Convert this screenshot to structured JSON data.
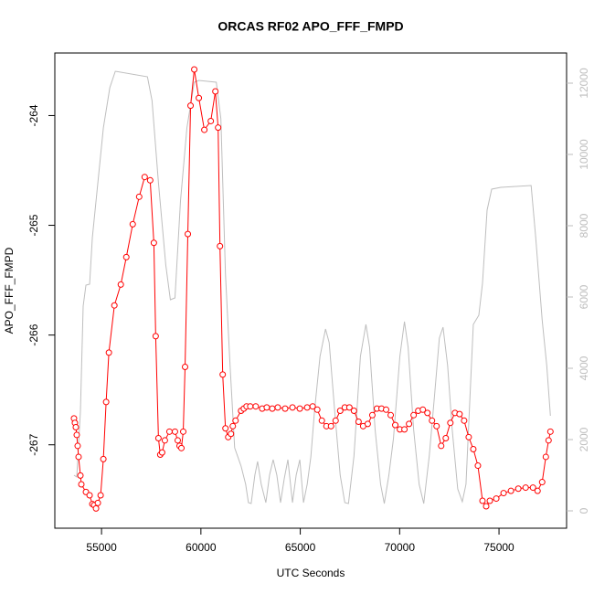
{
  "chart_data": {
    "type": "line",
    "title": "ORCAS RF02 APO_FFF_FMPD",
    "x_label": "UTC Seconds",
    "y_label": "APO_FFF_FMPD",
    "xlim": [
      52650,
      78400
    ],
    "xticks": [
      55000,
      60000,
      65000,
      70000,
      75000
    ],
    "ylim": [
      -267.76,
      -263.43
    ],
    "yticks": [
      -264,
      -265,
      -266,
      -267
    ],
    "y2lim": [
      -487,
      12846
    ],
    "y2ticks": [
      0,
      2000,
      4000,
      6000,
      8000,
      10000,
      12000
    ],
    "series": [
      {
        "color": "#ff0000",
        "markers": true,
        "x": [
          53614,
          53660,
          53707,
          53753,
          53799,
          53845,
          53938,
          53984,
          54215,
          54400,
          54538,
          54630,
          54723,
          54815,
          54954,
          55092,
          55231,
          55370,
          55647,
          55970,
          56247,
          56570,
          56894,
          57171,
          57448,
          57633,
          57725,
          57864,
          57956,
          58049,
          58187,
          58418,
          58695,
          58834,
          58926,
          59019,
          59111,
          59203,
          59342,
          59480,
          59665,
          59896,
          60173,
          60497,
          60728,
          60866,
          60959,
          61097,
          61236,
          61374,
          61513,
          61605,
          61744,
          62021,
          62159,
          62298,
          62483,
          62760,
          63083,
          63314,
          63591,
          63868,
          64238,
          64608,
          64977,
          65347,
          65624,
          65855,
          66086,
          66317,
          66548,
          66779,
          67009,
          67240,
          67471,
          67702,
          67933,
          68164,
          68395,
          68626,
          68857,
          69088,
          69319,
          69550,
          69780,
          70011,
          70242,
          70473,
          70704,
          70935,
          71167,
          71398,
          71628,
          71859,
          72090,
          72321,
          72552,
          72783,
          73014,
          73245,
          73476,
          73707,
          73938,
          74169,
          74354,
          74538,
          74862,
          75231,
          75601,
          75970,
          76340,
          76709,
          76940,
          77171,
          77356,
          77494,
          77586
        ],
        "values": [
          -266.76,
          -266.8,
          -266.84,
          -266.91,
          -267.01,
          -267.11,
          -267.28,
          -267.36,
          -267.43,
          -267.46,
          -267.54,
          -267.55,
          -267.58,
          -267.53,
          -267.46,
          -267.13,
          -266.61,
          -266.16,
          -265.73,
          -265.54,
          -265.29,
          -264.99,
          -264.74,
          -264.56,
          -264.59,
          -265.16,
          -266.01,
          -266.94,
          -267.09,
          -267.07,
          -266.96,
          -266.88,
          -266.88,
          -266.96,
          -267.01,
          -267.03,
          -266.88,
          -266.29,
          -265.08,
          -263.91,
          -263.58,
          -263.84,
          -264.13,
          -264.05,
          -263.78,
          -264.11,
          -265.19,
          -266.36,
          -266.85,
          -266.93,
          -266.9,
          -266.83,
          -266.78,
          -266.69,
          -266.67,
          -266.65,
          -266.65,
          -266.65,
          -266.67,
          -266.66,
          -266.67,
          -266.66,
          -266.67,
          -266.66,
          -266.67,
          -266.66,
          -266.65,
          -266.68,
          -266.78,
          -266.83,
          -266.83,
          -266.78,
          -266.69,
          -266.66,
          -266.66,
          -266.69,
          -266.79,
          -266.83,
          -266.81,
          -266.73,
          -266.67,
          -266.67,
          -266.68,
          -266.73,
          -266.82,
          -266.86,
          -266.86,
          -266.81,
          -266.73,
          -266.69,
          -266.68,
          -266.71,
          -266.78,
          -266.83,
          -267.01,
          -266.94,
          -266.8,
          -266.71,
          -266.72,
          -266.78,
          -266.93,
          -267.04,
          -267.19,
          -267.51,
          -267.56,
          -267.51,
          -267.49,
          -267.44,
          -267.42,
          -267.4,
          -267.39,
          -267.39,
          -267.42,
          -267.34,
          -267.11,
          -266.96,
          -266.88
        ]
      },
      {
        "color": "#bebebe",
        "axis": "y2",
        "x": [
          53614,
          53753,
          53938,
          54076,
          54215,
          54400,
          54538,
          54815,
          55092,
          55416,
          55693,
          57310,
          57540,
          57864,
          58233,
          58464,
          58695,
          58972,
          59296,
          59665,
          59896,
          60774,
          61005,
          61236,
          61467,
          61698,
          62021,
          62252,
          62390,
          62529,
          62714,
          62852,
          63037,
          63268,
          63453,
          63637,
          63822,
          64007,
          64192,
          64377,
          64608,
          64793,
          64977,
          65162,
          65347,
          65532,
          65716,
          65993,
          66271,
          66455,
          66732,
          67009,
          67240,
          67425,
          67702,
          68026,
          68303,
          68488,
          68765,
          69042,
          69227,
          69458,
          69688,
          70011,
          70242,
          70427,
          70704,
          70982,
          71213,
          71490,
          71767,
          71998,
          72183,
          72414,
          72645,
          72922,
          73153,
          73338,
          73569,
          73707,
          73984,
          74169,
          74400,
          74631,
          75092,
          76616,
          76847,
          77171,
          77402,
          77586
        ],
        "values": [
          1000,
          949,
          2795,
          5744,
          6333,
          6359,
          7667,
          9205,
          10744,
          11872,
          12333,
          12179,
          11513,
          9205,
          6897,
          5923,
          5974,
          8692,
          10744,
          12026,
          12077,
          12026,
          11000,
          6641,
          4077,
          1769,
          1256,
          744,
          231,
          205,
          1000,
          1385,
          744,
          231,
          1000,
          1436,
          1000,
          231,
          897,
          1436,
          231,
          1000,
          1436,
          231,
          744,
          1513,
          2795,
          4333,
          5103,
          4718,
          2795,
          1000,
          231,
          205,
          1538,
          4333,
          5231,
          4590,
          2282,
          744,
          205,
          1000,
          2026,
          4333,
          5308,
          4590,
          2282,
          744,
          205,
          1538,
          3308,
          4846,
          5154,
          4077,
          2282,
          615,
          256,
          744,
          3564,
          5231,
          5487,
          6385,
          8436,
          9026,
          9077,
          9128,
          7667,
          5359,
          4077,
          2667
        ]
      }
    ]
  }
}
